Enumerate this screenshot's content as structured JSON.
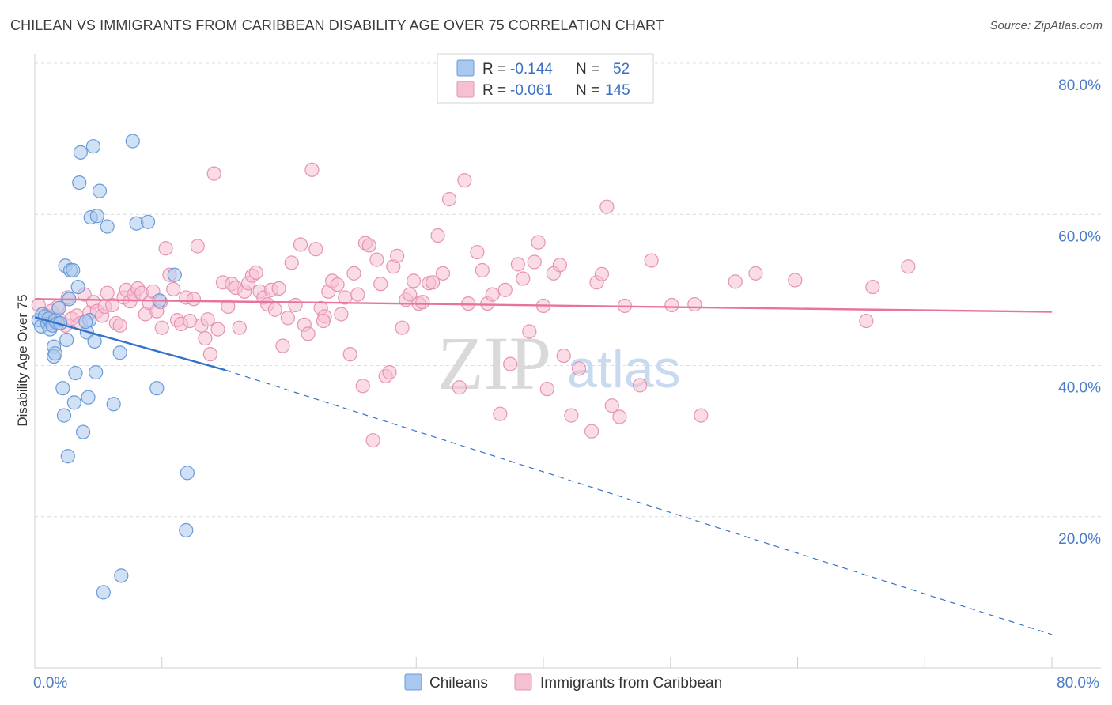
{
  "header": {
    "title": "CHILEAN VS IMMIGRANTS FROM CARIBBEAN DISABILITY AGE OVER 75 CORRELATION CHART",
    "source": "Source: ZipAtlas.com"
  },
  "watermark": {
    "zip": "ZIP",
    "atlas": "atlas"
  },
  "colors": {
    "blue_fill": "#a9c8ee",
    "blue_stroke": "#6b9ad8",
    "blue_line": "#3472c9",
    "pink_fill": "#f6c0d3",
    "pink_stroke": "#e693b2",
    "pink_line": "#e8739c",
    "grid": "#dcdcdc",
    "tick_text": "#4a7cc7"
  },
  "legend_top": {
    "rows": [
      {
        "r_label": "R =",
        "r_value": "-0.144",
        "n_label": "N =",
        "n_value": "52"
      },
      {
        "r_label": "R =",
        "r_value": "-0.061",
        "n_label": "N =",
        "n_value": "145"
      }
    ]
  },
  "legend_bottom": [
    {
      "label": "Chileans"
    },
    {
      "label": "Immigrants from Caribbean"
    }
  ],
  "chart_data": {
    "type": "scatter",
    "title": "CHILEAN VS IMMIGRANTS FROM CARIBBEAN DISABILITY AGE OVER 75 CORRELATION CHART",
    "xlabel": "",
    "ylabel": "Disability Age Over 75",
    "xlim": [
      0,
      80
    ],
    "ylim": [
      0,
      80
    ],
    "x_tick_labels": [
      "0.0%",
      "80.0%"
    ],
    "y_ticks": [
      20,
      40,
      60,
      80
    ],
    "y_tick_labels": [
      "20.0%",
      "40.0%",
      "60.0%",
      "80.0%"
    ],
    "grid": true,
    "series": [
      {
        "name": "Chileans",
        "r": -0.144,
        "n": 52,
        "trend": {
          "x0": 0.0,
          "y0": 46.4,
          "x1": 15.0,
          "y1": 39.4,
          "dash_to_x": 80.0,
          "dash_to_y": 4.4
        },
        "points": [
          [
            0.3,
            46.0
          ],
          [
            0.5,
            45.2
          ],
          [
            0.6,
            46.8
          ],
          [
            0.8,
            46.5
          ],
          [
            1.0,
            45.5
          ],
          [
            1.1,
            46.2
          ],
          [
            1.2,
            44.8
          ],
          [
            1.4,
            45.3
          ],
          [
            1.6,
            46.0
          ],
          [
            1.5,
            42.5
          ],
          [
            1.5,
            41.2
          ],
          [
            1.6,
            41.6
          ],
          [
            1.8,
            45.6
          ],
          [
            2.0,
            45.6
          ],
          [
            1.9,
            47.6
          ],
          [
            2.2,
            37.0
          ],
          [
            2.3,
            33.4
          ],
          [
            2.4,
            53.2
          ],
          [
            2.5,
            43.4
          ],
          [
            2.6,
            28.0
          ],
          [
            2.7,
            48.8
          ],
          [
            2.8,
            52.6
          ],
          [
            3.0,
            52.6
          ],
          [
            3.1,
            35.1
          ],
          [
            3.2,
            39.0
          ],
          [
            3.4,
            50.4
          ],
          [
            3.5,
            64.2
          ],
          [
            3.6,
            68.2
          ],
          [
            3.8,
            31.2
          ],
          [
            4.1,
            44.4
          ],
          [
            4.2,
            35.8
          ],
          [
            4.3,
            46.0
          ],
          [
            4.4,
            59.6
          ],
          [
            4.6,
            69.0
          ],
          [
            4.7,
            43.2
          ],
          [
            4.8,
            39.1
          ],
          [
            4.9,
            59.8
          ],
          [
            5.1,
            63.1
          ],
          [
            5.7,
            58.4
          ],
          [
            6.2,
            34.9
          ],
          [
            6.7,
            41.7
          ],
          [
            7.7,
            69.7
          ],
          [
            8.0,
            58.8
          ],
          [
            8.9,
            59.0
          ],
          [
            9.6,
            37.0
          ],
          [
            9.8,
            48.6
          ],
          [
            11.0,
            52.0
          ],
          [
            12.0,
            25.8
          ],
          [
            11.9,
            18.2
          ],
          [
            5.4,
            10.0
          ],
          [
            6.8,
            12.2
          ],
          [
            4.0,
            45.8
          ]
        ]
      },
      {
        "name": "Immigrants from Caribbean",
        "r": -0.061,
        "n": 145,
        "trend": {
          "x0": 0.0,
          "y0": 48.8,
          "x1": 80.0,
          "y1": 47.1
        },
        "points": [
          [
            0.3,
            48.0
          ],
          [
            0.6,
            46.8
          ],
          [
            0.9,
            46.6
          ],
          [
            1.3,
            47.2
          ],
          [
            1.5,
            45.8
          ],
          [
            1.8,
            47.8
          ],
          [
            2.0,
            46.0
          ],
          [
            2.4,
            45.3
          ],
          [
            2.6,
            49.0
          ],
          [
            2.9,
            46.2
          ],
          [
            3.3,
            46.6
          ],
          [
            3.6,
            45.6
          ],
          [
            3.9,
            49.4
          ],
          [
            4.3,
            47.0
          ],
          [
            4.6,
            48.4
          ],
          [
            4.9,
            47.2
          ],
          [
            5.3,
            46.6
          ],
          [
            5.5,
            47.8
          ],
          [
            5.7,
            49.6
          ],
          [
            6.1,
            48.0
          ],
          [
            6.4,
            45.6
          ],
          [
            6.7,
            45.3
          ],
          [
            7.0,
            49.0
          ],
          [
            7.2,
            50.0
          ],
          [
            7.5,
            48.5
          ],
          [
            7.8,
            49.4
          ],
          [
            8.1,
            50.2
          ],
          [
            8.4,
            49.6
          ],
          [
            8.7,
            46.8
          ],
          [
            9.0,
            48.3
          ],
          [
            9.3,
            49.8
          ],
          [
            9.6,
            47.2
          ],
          [
            9.9,
            48.4
          ],
          [
            10.3,
            55.5
          ],
          [
            10.6,
            52.0
          ],
          [
            10.9,
            50.1
          ],
          [
            11.2,
            46.0
          ],
          [
            11.5,
            45.5
          ],
          [
            11.9,
            49.0
          ],
          [
            12.2,
            45.9
          ],
          [
            12.5,
            48.8
          ],
          [
            12.8,
            55.8
          ],
          [
            13.1,
            45.3
          ],
          [
            13.4,
            43.6
          ],
          [
            13.8,
            41.5
          ],
          [
            14.1,
            65.4
          ],
          [
            14.4,
            44.8
          ],
          [
            14.8,
            51.0
          ],
          [
            15.2,
            47.8
          ],
          [
            15.5,
            50.8
          ],
          [
            15.8,
            50.3
          ],
          [
            16.1,
            45.0
          ],
          [
            16.5,
            49.8
          ],
          [
            16.8,
            50.9
          ],
          [
            17.1,
            51.9
          ],
          [
            17.4,
            52.3
          ],
          [
            17.7,
            49.8
          ],
          [
            18.0,
            49.0
          ],
          [
            18.3,
            48.1
          ],
          [
            18.6,
            50.0
          ],
          [
            18.9,
            47.4
          ],
          [
            19.2,
            50.2
          ],
          [
            19.5,
            42.6
          ],
          [
            19.9,
            46.3
          ],
          [
            20.2,
            53.6
          ],
          [
            20.5,
            48.0
          ],
          [
            20.9,
            56.0
          ],
          [
            21.2,
            45.4
          ],
          [
            21.5,
            44.2
          ],
          [
            21.8,
            65.9
          ],
          [
            22.1,
            55.4
          ],
          [
            22.5,
            47.6
          ],
          [
            22.8,
            46.5
          ],
          [
            23.1,
            49.8
          ],
          [
            23.4,
            51.2
          ],
          [
            23.8,
            50.7
          ],
          [
            24.1,
            46.8
          ],
          [
            24.4,
            49.0
          ],
          [
            24.8,
            41.5
          ],
          [
            25.1,
            52.2
          ],
          [
            25.4,
            49.4
          ],
          [
            25.8,
            37.3
          ],
          [
            26.0,
            56.2
          ],
          [
            26.3,
            55.9
          ],
          [
            26.6,
            30.1
          ],
          [
            26.9,
            54.0
          ],
          [
            27.2,
            50.8
          ],
          [
            27.6,
            38.6
          ],
          [
            27.9,
            39.1
          ],
          [
            28.2,
            53.1
          ],
          [
            28.5,
            54.5
          ],
          [
            28.9,
            45.0
          ],
          [
            29.2,
            48.7
          ],
          [
            29.5,
            49.4
          ],
          [
            29.8,
            51.2
          ],
          [
            30.2,
            48.2
          ],
          [
            30.5,
            48.4
          ],
          [
            31.0,
            50.9
          ],
          [
            31.3,
            51.0
          ],
          [
            31.7,
            57.2
          ],
          [
            32.1,
            52.2
          ],
          [
            32.6,
            62.0
          ],
          [
            33.4,
            37.1
          ],
          [
            33.8,
            64.5
          ],
          [
            34.1,
            48.2
          ],
          [
            34.8,
            55.0
          ],
          [
            35.2,
            52.6
          ],
          [
            35.6,
            48.2
          ],
          [
            36.0,
            49.4
          ],
          [
            36.6,
            33.6
          ],
          [
            37.0,
            50.0
          ],
          [
            37.4,
            40.2
          ],
          [
            38.0,
            53.4
          ],
          [
            38.4,
            51.5
          ],
          [
            38.9,
            44.5
          ],
          [
            39.3,
            53.7
          ],
          [
            39.6,
            56.3
          ],
          [
            40.0,
            47.9
          ],
          [
            40.3,
            36.9
          ],
          [
            40.8,
            52.2
          ],
          [
            41.3,
            53.3
          ],
          [
            41.6,
            41.3
          ],
          [
            42.2,
            33.4
          ],
          [
            42.8,
            39.6
          ],
          [
            43.8,
            31.3
          ],
          [
            44.2,
            51.0
          ],
          [
            44.6,
            52.1
          ],
          [
            45.0,
            61.0
          ],
          [
            45.4,
            34.7
          ],
          [
            46.0,
            33.2
          ],
          [
            46.4,
            47.9
          ],
          [
            47.6,
            37.4
          ],
          [
            48.5,
            53.9
          ],
          [
            50.1,
            48.0
          ],
          [
            51.9,
            48.1
          ],
          [
            52.4,
            33.4
          ],
          [
            55.1,
            51.1
          ],
          [
            56.7,
            52.2
          ],
          [
            59.8,
            51.3
          ],
          [
            65.4,
            45.9
          ],
          [
            65.9,
            50.4
          ],
          [
            68.7,
            53.1
          ],
          [
            22.7,
            45.9
          ],
          [
            10.0,
            45.0
          ],
          [
            13.6,
            46.1
          ]
        ]
      }
    ]
  }
}
